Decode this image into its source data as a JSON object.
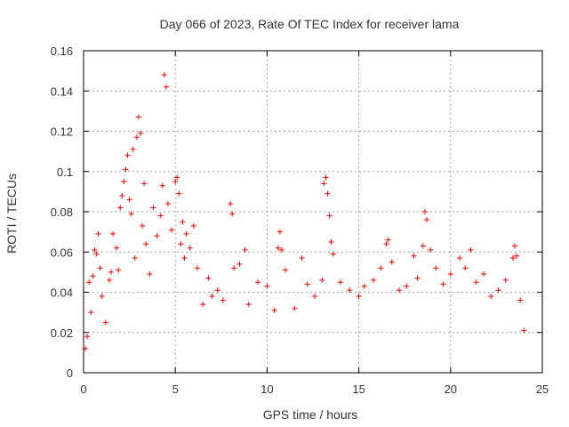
{
  "chart_data": {
    "type": "scatter",
    "title": "Day 066 of 2023, Rate Of TEC Index for receiver lama",
    "xlabel": "GPS time / hours",
    "ylabel": "ROTI / TECUs",
    "xlim": [
      0,
      25
    ],
    "ylim": [
      0,
      0.16
    ],
    "xticks": [
      0,
      5,
      10,
      15,
      20,
      25
    ],
    "xtick_labels": [
      "0",
      "5",
      "10",
      "15",
      "20",
      "25"
    ],
    "yticks": [
      0,
      0.02,
      0.04,
      0.06,
      0.08,
      0.1,
      0.12,
      0.14,
      0.16
    ],
    "ytick_labels": [
      "0",
      "0.02",
      "0.04",
      "0.06",
      "0.08",
      "0.1",
      "0.12",
      "0.14",
      "0.16"
    ],
    "grid": true,
    "marker": "plus",
    "color": "#ff0000",
    "series": [
      {
        "points": [
          [
            0.1,
            0.012
          ],
          [
            0.2,
            0.018
          ],
          [
            0.3,
            0.045
          ],
          [
            0.4,
            0.03
          ],
          [
            0.5,
            0.048
          ],
          [
            0.6,
            0.061
          ],
          [
            0.7,
            0.059
          ],
          [
            0.8,
            0.069
          ],
          [
            0.9,
            0.052
          ],
          [
            1.0,
            0.038
          ],
          [
            1.2,
            0.025
          ],
          [
            1.4,
            0.046
          ],
          [
            1.5,
            0.05
          ],
          [
            1.6,
            0.069
          ],
          [
            1.8,
            0.062
          ],
          [
            1.9,
            0.051
          ],
          [
            2.0,
            0.082
          ],
          [
            2.1,
            0.088
          ],
          [
            2.2,
            0.095
          ],
          [
            2.3,
            0.101
          ],
          [
            2.4,
            0.108
          ],
          [
            2.5,
            0.086
          ],
          [
            2.6,
            0.079
          ],
          [
            2.7,
            0.111
          ],
          [
            2.8,
            0.057
          ],
          [
            2.9,
            0.117
          ],
          [
            3.0,
            0.127
          ],
          [
            3.1,
            0.119
          ],
          [
            3.2,
            0.073
          ],
          [
            3.3,
            0.094
          ],
          [
            3.4,
            0.064
          ],
          [
            3.6,
            0.049
          ],
          [
            3.8,
            0.082
          ],
          [
            4.0,
            0.068
          ],
          [
            4.2,
            0.078
          ],
          [
            4.3,
            0.093
          ],
          [
            4.4,
            0.148
          ],
          [
            4.5,
            0.142
          ],
          [
            4.6,
            0.084
          ],
          [
            4.8,
            0.071
          ],
          [
            5.0,
            0.095
          ],
          [
            5.1,
            0.097
          ],
          [
            5.2,
            0.089
          ],
          [
            5.3,
            0.064
          ],
          [
            5.4,
            0.075
          ],
          [
            5.5,
            0.057
          ],
          [
            5.6,
            0.069
          ],
          [
            5.8,
            0.062
          ],
          [
            6.0,
            0.073
          ],
          [
            6.2,
            0.052
          ],
          [
            6.5,
            0.034
          ],
          [
            6.8,
            0.047
          ],
          [
            7.0,
            0.038
          ],
          [
            7.3,
            0.041
          ],
          [
            7.6,
            0.036
          ],
          [
            8.0,
            0.084
          ],
          [
            8.1,
            0.079
          ],
          [
            8.2,
            0.052
          ],
          [
            8.5,
            0.054
          ],
          [
            8.8,
            0.061
          ],
          [
            9.0,
            0.034
          ],
          [
            9.5,
            0.045
          ],
          [
            10.0,
            0.043
          ],
          [
            10.4,
            0.031
          ],
          [
            10.6,
            0.062
          ],
          [
            10.7,
            0.07
          ],
          [
            10.8,
            0.061
          ],
          [
            11.0,
            0.051
          ],
          [
            11.5,
            0.032
          ],
          [
            11.9,
            0.057
          ],
          [
            12.2,
            0.044
          ],
          [
            12.6,
            0.038
          ],
          [
            13.0,
            0.046
          ],
          [
            13.1,
            0.094
          ],
          [
            13.2,
            0.097
          ],
          [
            13.3,
            0.089
          ],
          [
            13.4,
            0.078
          ],
          [
            13.5,
            0.065
          ],
          [
            13.6,
            0.059
          ],
          [
            14.0,
            0.045
          ],
          [
            14.5,
            0.041
          ],
          [
            15.0,
            0.038
          ],
          [
            15.3,
            0.043
          ],
          [
            15.8,
            0.046
          ],
          [
            16.2,
            0.052
          ],
          [
            16.5,
            0.064
          ],
          [
            16.6,
            0.066
          ],
          [
            16.8,
            0.055
          ],
          [
            17.2,
            0.041
          ],
          [
            17.6,
            0.043
          ],
          [
            18.0,
            0.058
          ],
          [
            18.2,
            0.047
          ],
          [
            18.5,
            0.063
          ],
          [
            18.6,
            0.08
          ],
          [
            18.7,
            0.076
          ],
          [
            18.9,
            0.061
          ],
          [
            19.2,
            0.052
          ],
          [
            19.6,
            0.044
          ],
          [
            20.0,
            0.049
          ],
          [
            20.5,
            0.057
          ],
          [
            20.8,
            0.052
          ],
          [
            21.1,
            0.061
          ],
          [
            21.4,
            0.045
          ],
          [
            21.8,
            0.049
          ],
          [
            22.2,
            0.038
          ],
          [
            22.6,
            0.041
          ],
          [
            23.0,
            0.046
          ],
          [
            23.4,
            0.057
          ],
          [
            23.5,
            0.063
          ],
          [
            23.6,
            0.058
          ],
          [
            23.8,
            0.036
          ],
          [
            24.0,
            0.021
          ]
        ]
      }
    ]
  }
}
